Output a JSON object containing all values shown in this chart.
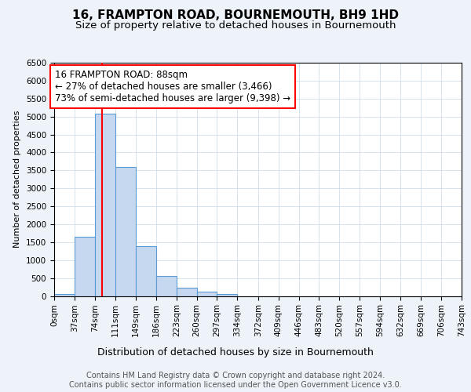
{
  "title": "16, FRAMPTON ROAD, BOURNEMOUTH, BH9 1HD",
  "subtitle": "Size of property relative to detached houses in Bournemouth",
  "xlabel": "Distribution of detached houses by size in Bournemouth",
  "ylabel": "Number of detached properties",
  "bin_edges": [
    0,
    37,
    74,
    111,
    149,
    186,
    223,
    260,
    297,
    334,
    372,
    409,
    446,
    483,
    520,
    557,
    594,
    632,
    669,
    706,
    743
  ],
  "bin_counts": [
    50,
    1640,
    5080,
    3600,
    1390,
    560,
    230,
    130,
    50,
    0,
    0,
    0,
    0,
    0,
    0,
    0,
    0,
    0,
    0,
    0
  ],
  "bar_color": "#c5d8f0",
  "bar_edge_color": "#5b9bd5",
  "property_size": 88,
  "red_line_color": "#ff0000",
  "annotation_text": "16 FRAMPTON ROAD: 88sqm\n← 27% of detached houses are smaller (3,466)\n73% of semi-detached houses are larger (9,398) →",
  "annotation_box_color": "#ffffff",
  "annotation_box_edge_color": "#ff0000",
  "ylim": [
    0,
    6500
  ],
  "yticks": [
    0,
    500,
    1000,
    1500,
    2000,
    2500,
    3000,
    3500,
    4000,
    4500,
    5000,
    5500,
    6000,
    6500
  ],
  "footer_line1": "Contains HM Land Registry data © Crown copyright and database right 2024.",
  "footer_line2": "Contains public sector information licensed under the Open Government Licence v3.0.",
  "background_color": "#eef3f9",
  "plot_bg_color": "#ffffff",
  "grid_color": "#c8d8e8",
  "title_fontsize": 11,
  "subtitle_fontsize": 9.5,
  "xlabel_fontsize": 9,
  "ylabel_fontsize": 8,
  "tick_fontsize": 7.5,
  "annotation_fontsize": 8.5,
  "footer_fontsize": 7
}
